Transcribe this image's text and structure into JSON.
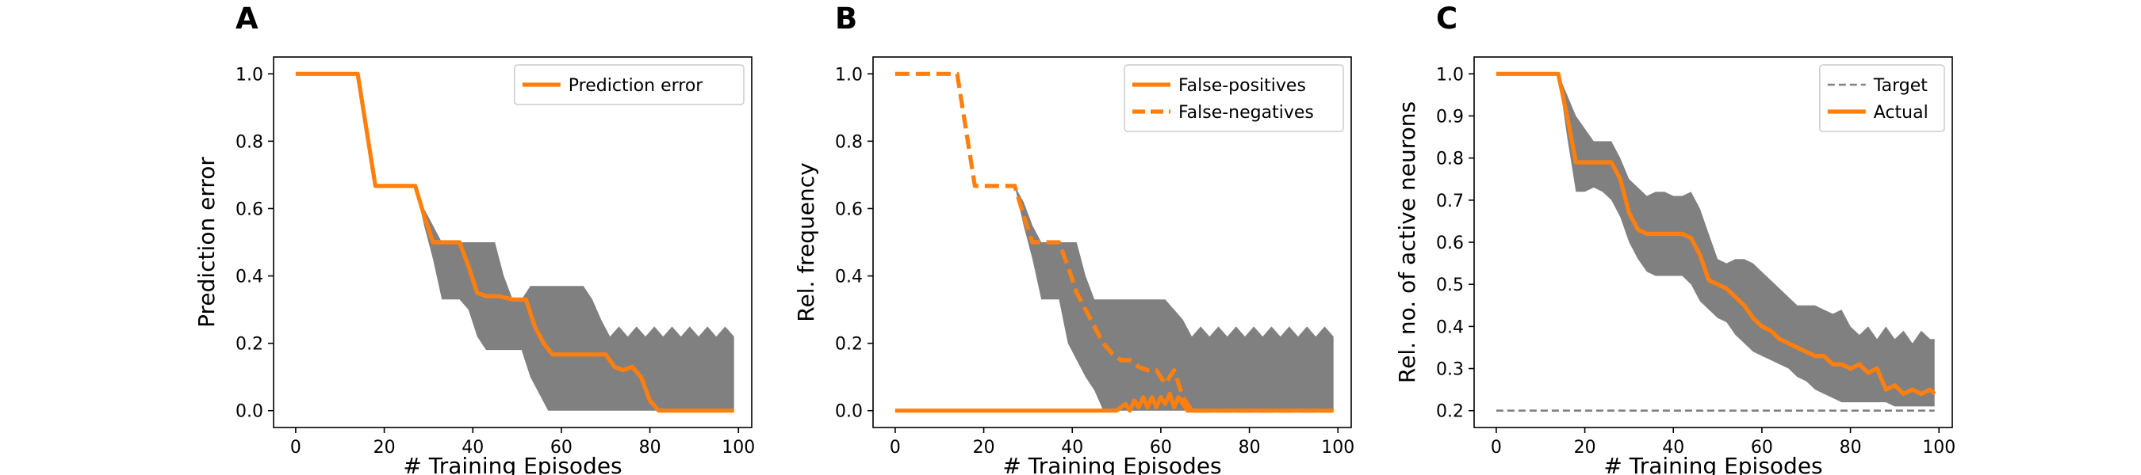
{
  "chart_data": [
    {
      "panel_letter": "A",
      "type": "line",
      "xlabel": "# Training Episodes",
      "ylabel": "Prediction error",
      "xlim": [
        -5,
        103
      ],
      "ylim": [
        -0.05,
        1.05
      ],
      "xticks": [
        0,
        20,
        40,
        60,
        80,
        100
      ],
      "yticks": [
        0.0,
        0.2,
        0.4,
        0.6,
        0.8,
        1.0
      ],
      "ytick_labels": [
        "0.0",
        "0.2",
        "0.4",
        "0.6",
        "0.8",
        "1.0"
      ],
      "legend_position": "top-right",
      "band": {
        "color": "#808080",
        "x": [
          0,
          15,
          18,
          27,
          29,
          31,
          33,
          35,
          37,
          39,
          41,
          43,
          45,
          47,
          49,
          51,
          53,
          55,
          57,
          59,
          61,
          63,
          65,
          67,
          69,
          71,
          73,
          75,
          77,
          79,
          81,
          83,
          85,
          87,
          89,
          91,
          93,
          95,
          97,
          99
        ],
        "upper": [
          1.0,
          1.0,
          0.667,
          0.667,
          0.6,
          0.55,
          0.5,
          0.5,
          0.5,
          0.5,
          0.5,
          0.5,
          0.5,
          0.4,
          0.33,
          0.33,
          0.37,
          0.37,
          0.37,
          0.37,
          0.37,
          0.37,
          0.37,
          0.33,
          0.27,
          0.22,
          0.25,
          0.22,
          0.25,
          0.22,
          0.25,
          0.22,
          0.25,
          0.22,
          0.25,
          0.22,
          0.25,
          0.22,
          0.25,
          0.22
        ],
        "lower": [
          1.0,
          1.0,
          0.667,
          0.667,
          0.55,
          0.45,
          0.33,
          0.33,
          0.33,
          0.3,
          0.22,
          0.18,
          0.18,
          0.18,
          0.18,
          0.18,
          0.1,
          0.05,
          0.0,
          0.0,
          0.0,
          0.0,
          0.0,
          0.0,
          0.0,
          0.0,
          0.0,
          0.0,
          0.0,
          0.0,
          0.0,
          0.0,
          0.0,
          0.0,
          0.0,
          0.0,
          0.0,
          0.0,
          0.0,
          0.0
        ]
      },
      "series": [
        {
          "name": "Prediction error",
          "color": "#ff7f0e",
          "style": "solid",
          "x": [
            0,
            14,
            18,
            27,
            29,
            31,
            37,
            39,
            41,
            43,
            46,
            49,
            52,
            54,
            56,
            58,
            60,
            62,
            64,
            66,
            68,
            70,
            72,
            74,
            76,
            78,
            80,
            82,
            84,
            86,
            90,
            95,
            99
          ],
          "y": [
            1.0,
            1.0,
            0.667,
            0.667,
            0.58,
            0.5,
            0.5,
            0.43,
            0.35,
            0.34,
            0.34,
            0.33,
            0.33,
            0.25,
            0.2,
            0.167,
            0.167,
            0.167,
            0.167,
            0.167,
            0.167,
            0.167,
            0.13,
            0.12,
            0.13,
            0.1,
            0.03,
            0.0,
            0.0,
            0.0,
            0.0,
            0.0,
            0.0
          ]
        }
      ]
    },
    {
      "panel_letter": "B",
      "type": "line",
      "xlabel": "# Training Episodes",
      "ylabel": "Rel. frequency",
      "xlim": [
        -5,
        103
      ],
      "ylim": [
        -0.05,
        1.05
      ],
      "xticks": [
        0,
        20,
        40,
        60,
        80,
        100
      ],
      "yticks": [
        0.0,
        0.2,
        0.4,
        0.6,
        0.8,
        1.0
      ],
      "ytick_labels": [
        "0.0",
        "0.2",
        "0.4",
        "0.6",
        "0.8",
        "1.0"
      ],
      "legend_position": "top-right",
      "band": {
        "color": "#808080",
        "x": [
          0,
          15,
          18,
          27,
          29,
          31,
          33,
          35,
          37,
          39,
          41,
          43,
          45,
          47,
          49,
          51,
          53,
          55,
          57,
          59,
          61,
          63,
          65,
          67,
          69,
          71,
          73,
          75,
          77,
          79,
          81,
          83,
          85,
          87,
          89,
          91,
          93,
          95,
          97,
          99
        ],
        "upper": [
          1.0,
          1.0,
          0.667,
          0.667,
          0.62,
          0.55,
          0.5,
          0.5,
          0.5,
          0.5,
          0.5,
          0.4,
          0.33,
          0.33,
          0.33,
          0.33,
          0.33,
          0.33,
          0.33,
          0.33,
          0.33,
          0.3,
          0.27,
          0.22,
          0.25,
          0.22,
          0.25,
          0.22,
          0.25,
          0.22,
          0.25,
          0.22,
          0.25,
          0.22,
          0.25,
          0.22,
          0.25,
          0.22,
          0.25,
          0.22
        ],
        "lower": [
          1.0,
          1.0,
          0.667,
          0.667,
          0.55,
          0.45,
          0.33,
          0.33,
          0.33,
          0.2,
          0.15,
          0.1,
          0.06,
          0.0,
          0.0,
          0.0,
          0.0,
          0.0,
          0.0,
          0.0,
          0.0,
          0.0,
          0.0,
          0.0,
          0.0,
          0.0,
          0.0,
          0.0,
          0.0,
          0.0,
          0.0,
          0.0,
          0.0,
          0.0,
          0.0,
          0.0,
          0.0,
          0.0,
          0.0,
          0.0
        ]
      },
      "series": [
        {
          "name": "False-positives",
          "color": "#ff7f0e",
          "style": "solid",
          "x": [
            0,
            50,
            52,
            53,
            54,
            55,
            56,
            57,
            58,
            59,
            60,
            61,
            62,
            63,
            64,
            65,
            66,
            68,
            80,
            99
          ],
          "y": [
            0.0,
            0.0,
            0.02,
            0.0,
            0.03,
            0.01,
            0.04,
            0.01,
            0.04,
            0.01,
            0.04,
            0.02,
            0.05,
            0.01,
            0.04,
            0.02,
            0.0,
            0.0,
            0.0,
            0.0
          ]
        },
        {
          "name": "False-negatives",
          "color": "#ff7f0e",
          "style": "dashed",
          "x": [
            0,
            14,
            18,
            27,
            29,
            31,
            37,
            39,
            41,
            43,
            45,
            47,
            49,
            51,
            53,
            55,
            57,
            59,
            61,
            63,
            65,
            67,
            80,
            99
          ],
          "y": [
            1.0,
            1.0,
            0.667,
            0.667,
            0.58,
            0.5,
            0.5,
            0.43,
            0.35,
            0.3,
            0.25,
            0.2,
            0.17,
            0.15,
            0.15,
            0.13,
            0.12,
            0.12,
            0.08,
            0.12,
            0.04,
            0.0,
            0.0,
            0.0
          ]
        }
      ]
    },
    {
      "panel_letter": "C",
      "type": "line",
      "xlabel": "# Training Episodes",
      "ylabel": "Rel. no. of active neurons",
      "xlim": [
        -5,
        103
      ],
      "ylim": [
        0.16,
        1.04
      ],
      "xticks": [
        0,
        20,
        40,
        60,
        80,
        100
      ],
      "yticks": [
        0.2,
        0.3,
        0.4,
        0.5,
        0.6,
        0.7,
        0.8,
        0.9,
        1.0
      ],
      "ytick_labels": [
        "0.2",
        "0.3",
        "0.4",
        "0.5",
        "0.6",
        "0.7",
        "0.8",
        "0.9",
        "1.0"
      ],
      "legend_position": "top-right",
      "band": {
        "color": "#808080",
        "x": [
          0,
          14,
          16,
          18,
          20,
          22,
          24,
          26,
          28,
          30,
          32,
          34,
          36,
          38,
          40,
          42,
          44,
          46,
          48,
          50,
          52,
          54,
          56,
          58,
          60,
          62,
          64,
          66,
          68,
          70,
          72,
          74,
          76,
          78,
          80,
          82,
          84,
          86,
          88,
          90,
          92,
          94,
          96,
          98,
          99
        ],
        "upper": [
          1.0,
          1.0,
          0.95,
          0.9,
          0.87,
          0.84,
          0.84,
          0.84,
          0.8,
          0.75,
          0.73,
          0.71,
          0.72,
          0.72,
          0.71,
          0.71,
          0.72,
          0.68,
          0.62,
          0.56,
          0.55,
          0.56,
          0.56,
          0.55,
          0.53,
          0.51,
          0.49,
          0.47,
          0.45,
          0.45,
          0.45,
          0.44,
          0.43,
          0.44,
          0.4,
          0.38,
          0.4,
          0.37,
          0.4,
          0.37,
          0.39,
          0.36,
          0.39,
          0.37,
          0.37
        ],
        "lower": [
          1.0,
          1.0,
          0.85,
          0.72,
          0.72,
          0.73,
          0.72,
          0.7,
          0.66,
          0.6,
          0.56,
          0.53,
          0.52,
          0.52,
          0.52,
          0.52,
          0.5,
          0.46,
          0.44,
          0.42,
          0.41,
          0.38,
          0.36,
          0.34,
          0.33,
          0.32,
          0.31,
          0.3,
          0.28,
          0.27,
          0.25,
          0.24,
          0.23,
          0.22,
          0.22,
          0.22,
          0.22,
          0.22,
          0.22,
          0.21,
          0.21,
          0.21,
          0.21,
          0.21,
          0.21
        ]
      },
      "series": [
        {
          "name": "Target",
          "color": "#808080",
          "style": "dashed",
          "x": [
            0,
            99
          ],
          "y": [
            0.2,
            0.2
          ]
        },
        {
          "name": "Actual",
          "color": "#ff7f0e",
          "style": "solid",
          "x": [
            0,
            14,
            16,
            18,
            20,
            22,
            24,
            26,
            28,
            30,
            32,
            34,
            36,
            38,
            40,
            42,
            44,
            46,
            48,
            50,
            52,
            54,
            56,
            58,
            60,
            62,
            64,
            66,
            68,
            70,
            72,
            74,
            76,
            78,
            80,
            82,
            84,
            86,
            88,
            90,
            92,
            94,
            96,
            98,
            99
          ],
          "y": [
            1.0,
            1.0,
            0.9,
            0.79,
            0.79,
            0.79,
            0.79,
            0.79,
            0.75,
            0.67,
            0.63,
            0.62,
            0.62,
            0.62,
            0.62,
            0.62,
            0.61,
            0.57,
            0.51,
            0.5,
            0.49,
            0.47,
            0.45,
            0.42,
            0.4,
            0.39,
            0.37,
            0.36,
            0.35,
            0.34,
            0.33,
            0.33,
            0.31,
            0.31,
            0.3,
            0.31,
            0.29,
            0.3,
            0.25,
            0.26,
            0.24,
            0.25,
            0.24,
            0.25,
            0.24
          ]
        }
      ]
    }
  ]
}
